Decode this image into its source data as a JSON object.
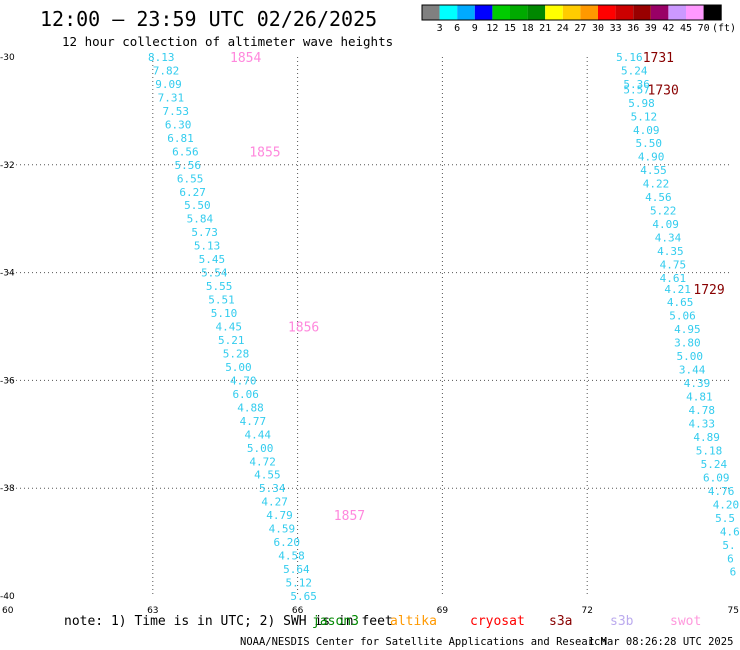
{
  "header": {
    "title": "12:00 — 23:59 UTC 02/26/2025",
    "subtitle": "12 hour collection of altimeter wave heights"
  },
  "legend": {
    "unit": "(ft)",
    "colors": [
      "#808080",
      "#00ffff",
      "#00aaff",
      "#0000ff",
      "#00cc00",
      "#00aa00",
      "#008800",
      "#ffff00",
      "#ffcc00",
      "#ff9900",
      "#ff0000",
      "#cc0000",
      "#990000",
      "#990066",
      "#cc99ff",
      "#ff99ff",
      "#000000"
    ],
    "labels": [
      "3",
      "6",
      "9",
      "12",
      "15",
      "18",
      "21",
      "24",
      "27",
      "30",
      "33",
      "36",
      "39",
      "42",
      "45",
      "70"
    ]
  },
  "footer": {
    "note": "note: 1) Time is in UTC; 2) SWH is in feet",
    "satellites": [
      {
        "name": "jason3",
        "color": "#008800"
      },
      {
        "name": "altika",
        "color": "#ff9900"
      },
      {
        "name": "cryosat",
        "color": "#ff0000"
      },
      {
        "name": "s3a",
        "color": "#880000"
      },
      {
        "name": "s3b",
        "color": "#bbaaee"
      },
      {
        "name": "swot",
        "color": "#ff99dd"
      }
    ],
    "credit": "NOAA/NESDIS Center for Satellite Applications and Research",
    "timestamp": "1 Mar 08:26:28 UTC 2025"
  },
  "chart_data": {
    "type": "scatter",
    "xlim": [
      60,
      75
    ],
    "ylim": [
      -40,
      -30
    ],
    "x_ticks": [
      "60",
      "63",
      "66",
      "69",
      "72",
      "75"
    ],
    "y_ticks": [
      "-30",
      "-32",
      "-34",
      "-36",
      "-38",
      "-40"
    ],
    "grid": true,
    "tracks": [
      {
        "color": "#33ccee",
        "points": [
          {
            "x": 62.9,
            "y": -30.0,
            "v": "8.13"
          },
          {
            "x": 63.0,
            "y": -30.25,
            "v": "7.82"
          },
          {
            "x": 63.05,
            "y": -30.5,
            "v": "9.09"
          },
          {
            "x": 63.1,
            "y": -30.75,
            "v": "7.31"
          },
          {
            "x": 63.2,
            "y": -31.0,
            "v": "7.53"
          },
          {
            "x": 63.25,
            "y": -31.25,
            "v": "6.30"
          },
          {
            "x": 63.3,
            "y": -31.5,
            "v": "6.81"
          },
          {
            "x": 63.4,
            "y": -31.75,
            "v": "6.56"
          },
          {
            "x": 63.45,
            "y": -32.0,
            "v": "5.56"
          },
          {
            "x": 63.5,
            "y": -32.25,
            "v": "6.55"
          },
          {
            "x": 63.55,
            "y": -32.5,
            "v": "6.27"
          },
          {
            "x": 63.65,
            "y": -32.75,
            "v": "5.50"
          },
          {
            "x": 63.7,
            "y": -33.0,
            "v": "5.84"
          },
          {
            "x": 63.8,
            "y": -33.25,
            "v": "5.73"
          },
          {
            "x": 63.85,
            "y": -33.5,
            "v": "5.13"
          },
          {
            "x": 63.95,
            "y": -33.75,
            "v": "5.45"
          },
          {
            "x": 64.0,
            "y": -34.0,
            "v": "5.54"
          },
          {
            "x": 64.1,
            "y": -34.25,
            "v": "5.55"
          },
          {
            "x": 64.15,
            "y": -34.5,
            "v": "5.51"
          },
          {
            "x": 64.2,
            "y": -34.75,
            "v": "5.10"
          },
          {
            "x": 64.3,
            "y": -35.0,
            "v": "4.45"
          },
          {
            "x": 64.35,
            "y": -35.25,
            "v": "5.21"
          },
          {
            "x": 64.45,
            "y": -35.5,
            "v": "5.28"
          },
          {
            "x": 64.5,
            "y": -35.75,
            "v": "5.00"
          },
          {
            "x": 64.6,
            "y": -36.0,
            "v": "4.70"
          },
          {
            "x": 64.65,
            "y": -36.25,
            "v": "6.06"
          },
          {
            "x": 64.75,
            "y": -36.5,
            "v": "4.88"
          },
          {
            "x": 64.8,
            "y": -36.75,
            "v": "4.77"
          },
          {
            "x": 64.9,
            "y": -37.0,
            "v": "4.44"
          },
          {
            "x": 64.95,
            "y": -37.25,
            "v": "5.00"
          },
          {
            "x": 65.0,
            "y": -37.5,
            "v": "4.72"
          },
          {
            "x": 65.1,
            "y": -37.75,
            "v": "4.55"
          },
          {
            "x": 65.2,
            "y": -38.0,
            "v": "5.34"
          },
          {
            "x": 65.25,
            "y": -38.25,
            "v": "4.27"
          },
          {
            "x": 65.35,
            "y": -38.5,
            "v": "4.79"
          },
          {
            "x": 65.4,
            "y": -38.75,
            "v": "4.59"
          },
          {
            "x": 65.5,
            "y": -39.0,
            "v": "6.20"
          },
          {
            "x": 65.6,
            "y": -39.25,
            "v": "4.58"
          },
          {
            "x": 65.7,
            "y": -39.5,
            "v": "5.64"
          },
          {
            "x": 65.75,
            "y": -39.75,
            "v": "5.12"
          },
          {
            "x": 65.85,
            "y": -40.0,
            "v": "5.65"
          }
        ]
      },
      {
        "color": "#33ccee",
        "points": [
          {
            "x": 72.6,
            "y": -30.0,
            "v": "5.16"
          },
          {
            "x": 72.7,
            "y": -30.25,
            "v": "5.24"
          },
          {
            "x": 72.75,
            "y": -30.5,
            "v": "5.36"
          },
          {
            "x": 72.75,
            "y": -30.6,
            "v": "5.57"
          },
          {
            "x": 72.85,
            "y": -30.85,
            "v": "5.98"
          },
          {
            "x": 72.9,
            "y": -31.1,
            "v": "5.12"
          },
          {
            "x": 72.95,
            "y": -31.35,
            "v": "4.09"
          },
          {
            "x": 73.0,
            "y": -31.6,
            "v": "5.50"
          },
          {
            "x": 73.05,
            "y": -31.85,
            "v": "4.90"
          },
          {
            "x": 73.1,
            "y": -32.1,
            "v": "4.55"
          },
          {
            "x": 73.15,
            "y": -32.35,
            "v": "4.22"
          },
          {
            "x": 73.2,
            "y": -32.6,
            "v": "4.56"
          },
          {
            "x": 73.3,
            "y": -32.85,
            "v": "5.22"
          },
          {
            "x": 73.35,
            "y": -33.1,
            "v": "4.09"
          },
          {
            "x": 73.4,
            "y": -33.35,
            "v": "4.34"
          },
          {
            "x": 73.45,
            "y": -33.6,
            "v": "4.35"
          },
          {
            "x": 73.5,
            "y": -33.85,
            "v": "4.75"
          },
          {
            "x": 73.5,
            "y": -34.1,
            "v": "4.61"
          }
        ]
      },
      {
        "color": "#33ccee",
        "points": [
          {
            "x": 73.6,
            "y": -34.3,
            "v": "4.21"
          },
          {
            "x": 73.65,
            "y": -34.55,
            "v": "4.65"
          },
          {
            "x": 73.7,
            "y": -34.8,
            "v": "5.06"
          },
          {
            "x": 73.8,
            "y": -35.05,
            "v": "4.95"
          },
          {
            "x": 73.8,
            "y": -35.3,
            "v": "3.80"
          },
          {
            "x": 73.85,
            "y": -35.55,
            "v": "5.00"
          },
          {
            "x": 73.9,
            "y": -35.8,
            "v": "3.44"
          },
          {
            "x": 74.0,
            "y": -36.05,
            "v": "4.39"
          },
          {
            "x": 74.05,
            "y": -36.3,
            "v": "4.81"
          },
          {
            "x": 74.1,
            "y": -36.55,
            "v": "4.78"
          },
          {
            "x": 74.1,
            "y": -36.8,
            "v": "4.33"
          },
          {
            "x": 74.2,
            "y": -37.05,
            "v": "4.89"
          },
          {
            "x": 74.25,
            "y": -37.3,
            "v": "5.18"
          },
          {
            "x": 74.35,
            "y": -37.55,
            "v": "5.24"
          },
          {
            "x": 74.4,
            "y": -37.8,
            "v": "6.09"
          },
          {
            "x": 74.5,
            "y": -38.05,
            "v": "4.76"
          },
          {
            "x": 74.6,
            "y": -38.3,
            "v": "4.20"
          },
          {
            "x": 74.65,
            "y": -38.55,
            "v": "5.5"
          },
          {
            "x": 74.75,
            "y": -38.8,
            "v": "4.6"
          },
          {
            "x": 74.8,
            "y": -39.05,
            "v": "5."
          },
          {
            "x": 74.9,
            "y": -39.3,
            "v": "6"
          },
          {
            "x": 74.95,
            "y": -39.55,
            "v": "6"
          }
        ]
      }
    ],
    "time_labels": [
      {
        "x": 64.6,
        "y": -30.0,
        "text": "1854",
        "color": "#ff88dd"
      },
      {
        "x": 65.0,
        "y": -31.75,
        "text": "1855",
        "color": "#ff88dd"
      },
      {
        "x": 65.8,
        "y": -35.0,
        "text": "1856",
        "color": "#ff88dd"
      },
      {
        "x": 66.75,
        "y": -38.5,
        "text": "1857",
        "color": "#ff88dd"
      },
      {
        "x": 73.15,
        "y": -30.0,
        "text": "1731",
        "color": "#880000"
      },
      {
        "x": 73.25,
        "y": -30.6,
        "text": "1730",
        "color": "#880000"
      },
      {
        "x": 74.2,
        "y": -34.3,
        "text": "1729",
        "color": "#880000"
      }
    ]
  }
}
